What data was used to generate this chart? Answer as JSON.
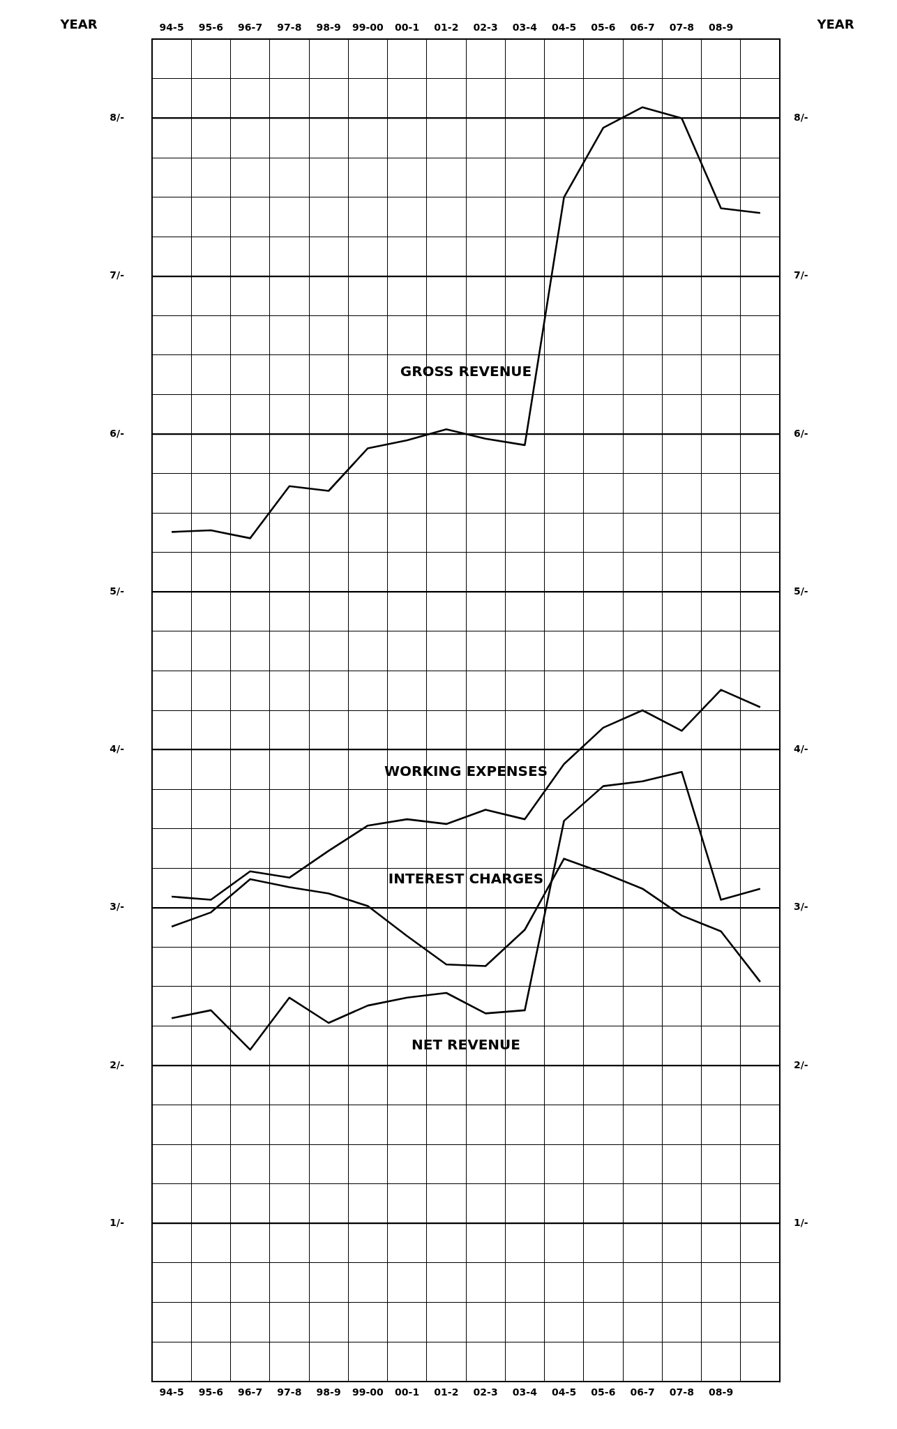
{
  "chart_data": {
    "type": "line",
    "categories": [
      "94-5",
      "95-6",
      "96-7",
      "97-8",
      "98-9",
      "99-00",
      "00-1",
      "01-2",
      "02-3",
      "03-4",
      "04-5",
      "05-6",
      "06-7",
      "07-8",
      "08-9",
      null
    ],
    "x2label": "YEAR",
    "ylim": [
      0,
      8.5
    ],
    "yticks": [
      {
        "value": 0.25,
        "label": null
      },
      {
        "value": 0.5,
        "label": null
      },
      {
        "value": 0.75,
        "label": null
      },
      {
        "value": 1,
        "label": "1/-"
      },
      {
        "value": 1.25,
        "label": null
      },
      {
        "value": 1.5,
        "label": null
      },
      {
        "value": 1.75,
        "label": null
      },
      {
        "value": 2,
        "label": "2/-"
      },
      {
        "value": 2.25,
        "label": null
      },
      {
        "value": 2.5,
        "label": null
      },
      {
        "value": 2.75,
        "label": null
      },
      {
        "value": 3,
        "label": "3/-"
      },
      {
        "value": 3.25,
        "label": null
      },
      {
        "value": 3.5,
        "label": null
      },
      {
        "value": 3.75,
        "label": null
      },
      {
        "value": 4,
        "label": "4/-"
      },
      {
        "value": 4.25,
        "label": null
      },
      {
        "value": 4.5,
        "label": null
      },
      {
        "value": 4.75,
        "label": null
      },
      {
        "value": 5,
        "label": "5/-"
      },
      {
        "value": 5.25,
        "label": null
      },
      {
        "value": 5.5,
        "label": null
      },
      {
        "value": 5.75,
        "label": null
      },
      {
        "value": 6,
        "label": "6/-"
      },
      {
        "value": 6.25,
        "label": null
      },
      {
        "value": 6.5,
        "label": null
      },
      {
        "value": 6.75,
        "label": null
      },
      {
        "value": 7,
        "label": "7/-"
      },
      {
        "value": 7.25,
        "label": null
      },
      {
        "value": 7.5,
        "label": null
      },
      {
        "value": 7.75,
        "label": null
      },
      {
        "value": 8,
        "label": "8/-"
      },
      {
        "value": 8.25,
        "label": null
      }
    ],
    "y2lim": [
      0,
      8.5
    ],
    "y2ticks": [
      {
        "value": 1,
        "label": "1/-"
      },
      {
        "value": 2,
        "label": "2/-"
      },
      {
        "value": 3,
        "label": "3/-"
      },
      {
        "value": 4,
        "label": "4/-"
      },
      {
        "value": 5,
        "label": "5/-"
      },
      {
        "value": 6,
        "label": "6/-"
      },
      {
        "value": 7,
        "label": "7/-"
      },
      {
        "value": 8,
        "label": "8/-"
      }
    ],
    "grid": true,
    "legend": false,
    "marker": "none",
    "line_style": "solid",
    "series": [
      {
        "name": "GROSS REVENUE",
        "color": "#000000",
        "values": [
          5.38,
          5.39,
          5.34,
          5.67,
          5.64,
          5.91,
          5.96,
          6.03,
          5.97,
          5.93,
          7.5,
          7.94,
          8.07,
          8.0,
          7.43,
          7.4
        ]
      },
      {
        "name": "WORKING EXPENSES",
        "color": "#000000",
        "values": [
          3.07,
          3.05,
          3.23,
          3.19,
          3.36,
          3.52,
          3.56,
          3.53,
          3.62,
          3.56,
          3.91,
          4.14,
          4.25,
          4.12,
          4.38,
          4.27
        ]
      },
      {
        "name": "INTEREST CHARGES",
        "color": "#000000",
        "values": [
          2.88,
          2.97,
          3.18,
          3.13,
          3.09,
          3.01,
          2.82,
          2.64,
          2.63,
          2.86,
          3.31,
          3.22,
          3.12,
          2.95,
          2.85,
          2.53
        ]
      },
      {
        "name": "NET REVENUE",
        "color": "#000000",
        "values": [
          2.3,
          2.35,
          2.1,
          2.43,
          2.27,
          2.38,
          2.43,
          2.46,
          2.33,
          2.35,
          3.55,
          3.77,
          3.8,
          3.86,
          3.05,
          3.12
        ]
      }
    ]
  }
}
